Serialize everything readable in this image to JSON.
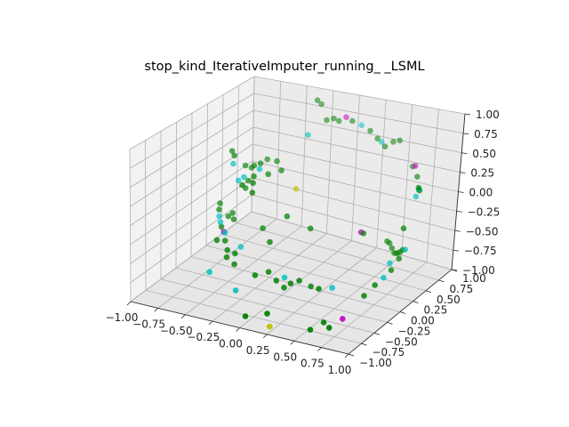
{
  "chart_data": {
    "type": "scatter",
    "title": "stop_kind_IterativeImputer_running_ _LSML",
    "projection": "3d",
    "xlim": [
      -1.0,
      1.0
    ],
    "ylim": [
      -1.0,
      1.0
    ],
    "zlim": [
      -1.0,
      1.0
    ],
    "x_ticks": [
      "−1.00",
      "−0.75",
      "−0.50",
      "−0.25",
      "0.00",
      "0.25",
      "0.50",
      "0.75",
      "1.00"
    ],
    "y_ticks": [
      "−1.00",
      "−0.75",
      "−0.50",
      "−0.25",
      "0.00",
      "0.25",
      "0.50",
      "0.75",
      "1.00"
    ],
    "z_ticks": [
      "−1.00",
      "−0.75",
      "−0.50",
      "−0.25",
      "0.00",
      "0.25",
      "0.50",
      "0.75",
      "1.00"
    ],
    "grid": true,
    "colors": {
      "green": "#008000",
      "cyan": "#00bfbf",
      "magenta": "#bf00bf",
      "yellow": "#bfbf00"
    },
    "points": [
      {
        "x": -0.85,
        "y": 0.4,
        "z": 0.3,
        "c": "green"
      },
      {
        "x": -0.8,
        "y": 0.35,
        "z": 0.28,
        "c": "green"
      },
      {
        "x": -0.78,
        "y": 0.3,
        "z": 0.2,
        "c": "cyan"
      },
      {
        "x": -0.75,
        "y": 0.45,
        "z": 0.1,
        "c": "green"
      },
      {
        "x": -0.72,
        "y": 0.5,
        "z": 0.05,
        "c": "green"
      },
      {
        "x": -0.7,
        "y": 0.25,
        "z": 0.02,
        "c": "cyan"
      },
      {
        "x": -0.68,
        "y": 0.38,
        "z": -0.05,
        "c": "green"
      },
      {
        "x": -0.66,
        "y": 0.3,
        "z": -0.1,
        "c": "green"
      },
      {
        "x": -0.65,
        "y": 0.42,
        "z": 0.15,
        "c": "green"
      },
      {
        "x": -0.62,
        "y": 0.2,
        "z": 0.12,
        "c": "cyan"
      },
      {
        "x": -0.6,
        "y": 0.55,
        "z": 0.18,
        "c": "green"
      },
      {
        "x": -0.58,
        "y": 0.1,
        "z": 0.08,
        "c": "green"
      },
      {
        "x": -0.55,
        "y": 0.35,
        "z": 0.25,
        "c": "green"
      },
      {
        "x": -0.52,
        "y": 0.28,
        "z": 0.22,
        "c": "cyan"
      },
      {
        "x": -0.5,
        "y": 0.15,
        "z": 0.2,
        "c": "green"
      },
      {
        "x": -0.48,
        "y": 0.5,
        "z": 0.22,
        "c": "green"
      },
      {
        "x": -0.45,
        "y": 0.05,
        "z": 0.18,
        "c": "green"
      },
      {
        "x": -0.42,
        "y": 0.25,
        "z": 0.2,
        "c": "green"
      },
      {
        "x": -0.4,
        "y": -0.05,
        "z": 0.12,
        "c": "green"
      },
      {
        "x": -0.38,
        "y": 0.4,
        "z": 0.18,
        "c": "green"
      },
      {
        "x": -0.9,
        "y": 0.3,
        "z": -0.4,
        "c": "green"
      },
      {
        "x": -0.88,
        "y": 0.25,
        "z": -0.45,
        "c": "green"
      },
      {
        "x": -0.85,
        "y": 0.2,
        "z": -0.5,
        "c": "cyan"
      },
      {
        "x": -0.82,
        "y": 0.3,
        "z": -0.55,
        "c": "green"
      },
      {
        "x": -0.8,
        "y": 0.15,
        "z": -0.6,
        "c": "green"
      },
      {
        "x": -0.78,
        "y": 0.1,
        "z": -0.5,
        "c": "cyan"
      },
      {
        "x": -0.75,
        "y": 0.25,
        "z": -0.45,
        "c": "green"
      },
      {
        "x": -0.72,
        "y": 0.05,
        "z": -0.58,
        "c": "magenta"
      },
      {
        "x": -0.7,
        "y": 0.18,
        "z": -0.48,
        "c": "green"
      },
      {
        "x": -0.68,
        "y": 0.0,
        "z": -0.55,
        "c": "cyan"
      },
      {
        "x": -0.65,
        "y": -0.05,
        "z": -0.62,
        "c": "green"
      },
      {
        "x": -0.6,
        "y": -0.1,
        "z": -0.7,
        "c": "green"
      },
      {
        "x": -0.55,
        "y": -0.2,
        "z": -0.72,
        "c": "green"
      },
      {
        "x": -0.5,
        "y": -0.15,
        "z": -0.68,
        "c": "green"
      },
      {
        "x": -0.45,
        "y": -0.25,
        "z": -0.75,
        "c": "green"
      },
      {
        "x": -0.6,
        "y": -0.4,
        "z": -0.82,
        "c": "cyan"
      },
      {
        "x": -0.3,
        "y": -0.5,
        "z": -0.9,
        "c": "cyan"
      },
      {
        "x": -0.2,
        "y": -0.35,
        "z": -0.75,
        "c": "green"
      },
      {
        "x": -0.1,
        "y": -0.3,
        "z": -0.7,
        "c": "green"
      },
      {
        "x": 0.0,
        "y": -0.35,
        "z": -0.75,
        "c": "green"
      },
      {
        "x": 0.05,
        "y": -0.3,
        "z": -0.72,
        "c": "cyan"
      },
      {
        "x": 0.1,
        "y": -0.4,
        "z": -0.78,
        "c": "green"
      },
      {
        "x": 0.15,
        "y": -0.38,
        "z": -0.72,
        "c": "green"
      },
      {
        "x": 0.2,
        "y": -0.32,
        "z": -0.7,
        "c": "green"
      },
      {
        "x": 0.3,
        "y": -0.3,
        "z": -0.75,
        "c": "green"
      },
      {
        "x": 0.4,
        "y": -0.35,
        "z": -0.72,
        "c": "green"
      },
      {
        "x": 0.5,
        "y": -0.3,
        "z": -0.7,
        "c": "cyan"
      },
      {
        "x": 0.1,
        "y": -0.7,
        "z": -0.95,
        "c": "green"
      },
      {
        "x": 0.2,
        "y": -0.85,
        "z": -1.0,
        "c": "yellow"
      },
      {
        "x": -0.05,
        "y": -0.8,
        "z": -0.98,
        "c": "green"
      },
      {
        "x": 0.55,
        "y": -0.8,
        "z": -0.95,
        "c": "green"
      },
      {
        "x": 0.75,
        "y": -0.6,
        "z": -0.85,
        "c": "magenta"
      },
      {
        "x": 0.7,
        "y": -0.75,
        "z": -0.9,
        "c": "green"
      },
      {
        "x": 0.6,
        "y": -0.65,
        "z": -0.92,
        "c": "green"
      },
      {
        "x": 0.8,
        "y": -0.3,
        "z": -0.7,
        "c": "green"
      },
      {
        "x": 0.85,
        "y": -0.2,
        "z": -0.6,
        "c": "green"
      },
      {
        "x": 0.88,
        "y": -0.1,
        "z": -0.55,
        "c": "cyan"
      },
      {
        "x": 0.9,
        "y": 0.0,
        "z": -0.5,
        "c": "green"
      },
      {
        "x": 0.86,
        "y": 0.05,
        "z": -0.45,
        "c": "cyan"
      },
      {
        "x": 0.92,
        "y": 0.1,
        "z": -0.4,
        "c": "green"
      },
      {
        "x": 0.95,
        "y": 0.15,
        "z": -0.3,
        "c": "cyan"
      },
      {
        "x": 0.9,
        "y": 0.2,
        "z": -0.35,
        "c": "green"
      },
      {
        "x": 0.85,
        "y": 0.25,
        "z": -0.42,
        "c": "green"
      },
      {
        "x": 0.8,
        "y": 0.3,
        "z": -0.48,
        "c": "green"
      },
      {
        "x": 0.75,
        "y": 0.35,
        "z": -0.52,
        "c": "green"
      },
      {
        "x": 0.7,
        "y": 0.4,
        "z": -0.5,
        "c": "green"
      },
      {
        "x": 0.65,
        "y": 0.45,
        "z": -0.48,
        "c": "green"
      },
      {
        "x": 0.6,
        "y": 0.5,
        "z": -0.5,
        "c": "green"
      },
      {
        "x": 0.95,
        "y": 0.3,
        "z": 0.3,
        "c": "cyan"
      },
      {
        "x": 0.92,
        "y": 0.4,
        "z": 0.35,
        "c": "green"
      },
      {
        "x": 0.9,
        "y": 0.45,
        "z": 0.3,
        "c": "cyan"
      },
      {
        "x": 0.88,
        "y": 0.5,
        "z": 0.25,
        "c": "green"
      },
      {
        "x": 0.85,
        "y": 0.55,
        "z": 0.22,
        "c": "green"
      },
      {
        "x": 0.8,
        "y": 0.6,
        "z": 0.35,
        "c": "green"
      },
      {
        "x": 0.75,
        "y": 0.65,
        "z": 0.45,
        "c": "magenta"
      },
      {
        "x": 0.7,
        "y": 0.7,
        "z": 0.4,
        "c": "green"
      },
      {
        "x": 0.95,
        "y": 0.1,
        "z": 0.0,
        "c": "green"
      },
      {
        "x": 0.3,
        "y": 0.8,
        "z": 0.6,
        "c": "green"
      },
      {
        "x": 0.35,
        "y": 0.78,
        "z": 0.58,
        "c": "cyan"
      },
      {
        "x": 0.4,
        "y": 0.75,
        "z": 0.55,
        "c": "green"
      },
      {
        "x": 0.45,
        "y": 0.8,
        "z": 0.6,
        "c": "green"
      },
      {
        "x": 0.5,
        "y": 0.82,
        "z": 0.62,
        "c": "green"
      },
      {
        "x": 0.2,
        "y": 0.85,
        "z": 0.65,
        "c": "green"
      },
      {
        "x": 0.1,
        "y": 0.88,
        "z": 0.68,
        "c": "cyan"
      },
      {
        "x": 0.0,
        "y": 0.9,
        "z": 0.7,
        "c": "green"
      },
      {
        "x": -0.05,
        "y": 0.88,
        "z": 0.75,
        "c": "magenta"
      },
      {
        "x": -0.1,
        "y": 0.85,
        "z": 0.7,
        "c": "green"
      },
      {
        "x": -0.15,
        "y": 0.85,
        "z": 0.72,
        "c": "green"
      },
      {
        "x": -0.2,
        "y": 0.82,
        "z": 0.7,
        "c": "green"
      },
      {
        "x": -0.3,
        "y": 0.9,
        "z": 0.85,
        "c": "green"
      },
      {
        "x": -0.35,
        "y": 0.92,
        "z": 0.88,
        "c": "green"
      },
      {
        "x": -0.25,
        "y": 0.6,
        "z": 0.6,
        "c": "cyan"
      },
      {
        "x": -0.18,
        "y": 0.3,
        "z": 0.05,
        "c": "yellow"
      },
      {
        "x": -0.15,
        "y": 0.1,
        "z": -0.2,
        "c": "green"
      },
      {
        "x": 0.1,
        "y": 0.05,
        "z": -0.25,
        "c": "green"
      },
      {
        "x": 0.5,
        "y": 0.2,
        "z": -0.25,
        "c": "magenta"
      },
      {
        "x": 0.55,
        "y": 0.15,
        "z": -0.22,
        "c": "green"
      },
      {
        "x": -0.2,
        "y": -0.1,
        "z": -0.45,
        "c": "green"
      },
      {
        "x": -0.35,
        "y": 0.05,
        "z": -0.4,
        "c": "green"
      },
      {
        "x": -0.7,
        "y": -0.1,
        "z": -0.6,
        "c": "green"
      },
      {
        "x": -0.5,
        "y": -0.05,
        "z": -0.65,
        "c": "cyan"
      }
    ]
  }
}
